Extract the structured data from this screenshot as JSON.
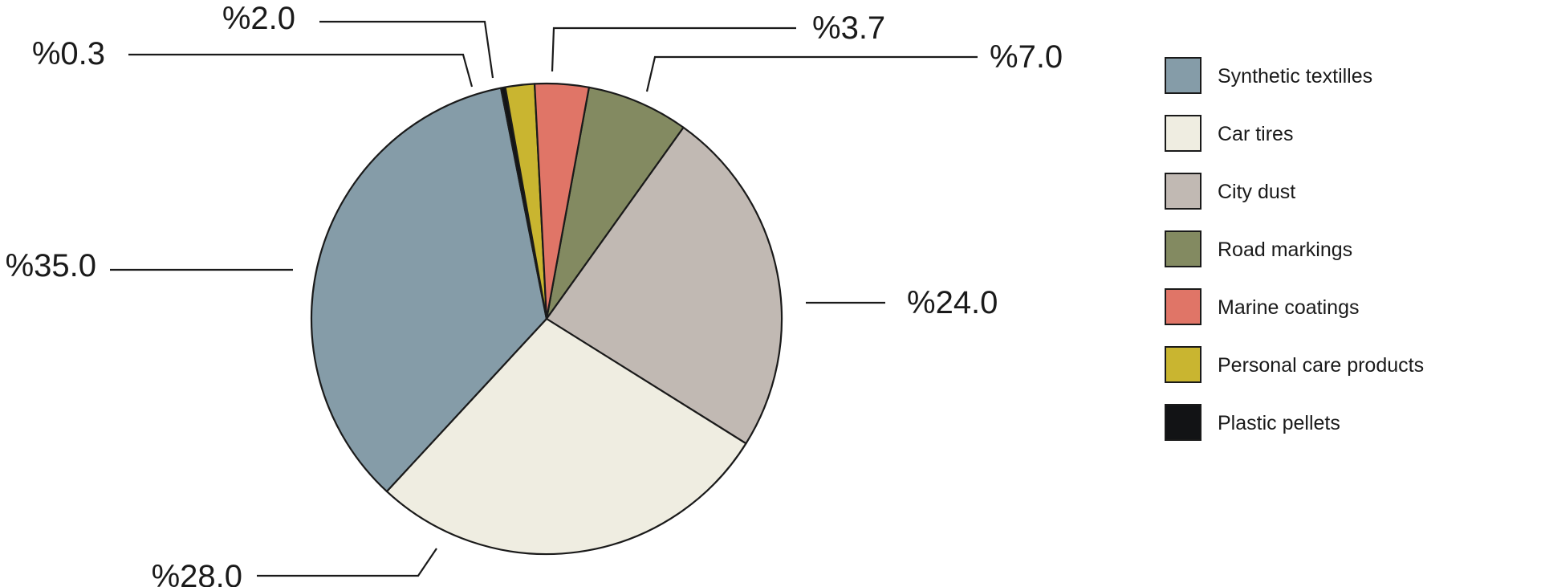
{
  "chart_data": {
    "type": "pie",
    "slices": [
      {
        "label": "Synthetic textilles",
        "value": 35.0,
        "display": "%35.0",
        "color": "#859ca8"
      },
      {
        "label": "Car tires",
        "value": 28.0,
        "display": "%28.0",
        "color": "#efede1"
      },
      {
        "label": "City dust",
        "value": 24.0,
        "display": "%24.0",
        "color": "#c1b9b3"
      },
      {
        "label": "Road markings",
        "value": 7.0,
        "display": "%7.0",
        "color": "#838a61"
      },
      {
        "label": "Marine coatings",
        "value": 3.7,
        "display": "%3.7",
        "color": "#e07567"
      },
      {
        "label": "Personal care products",
        "value": 2.0,
        "display": "%2.0",
        "color": "#c9b530"
      },
      {
        "label": "Plastic pellets",
        "value": 0.3,
        "display": "%0.3",
        "color": "#121315"
      }
    ],
    "legend_position": "right",
    "outline_color": "#1a1a1a"
  }
}
